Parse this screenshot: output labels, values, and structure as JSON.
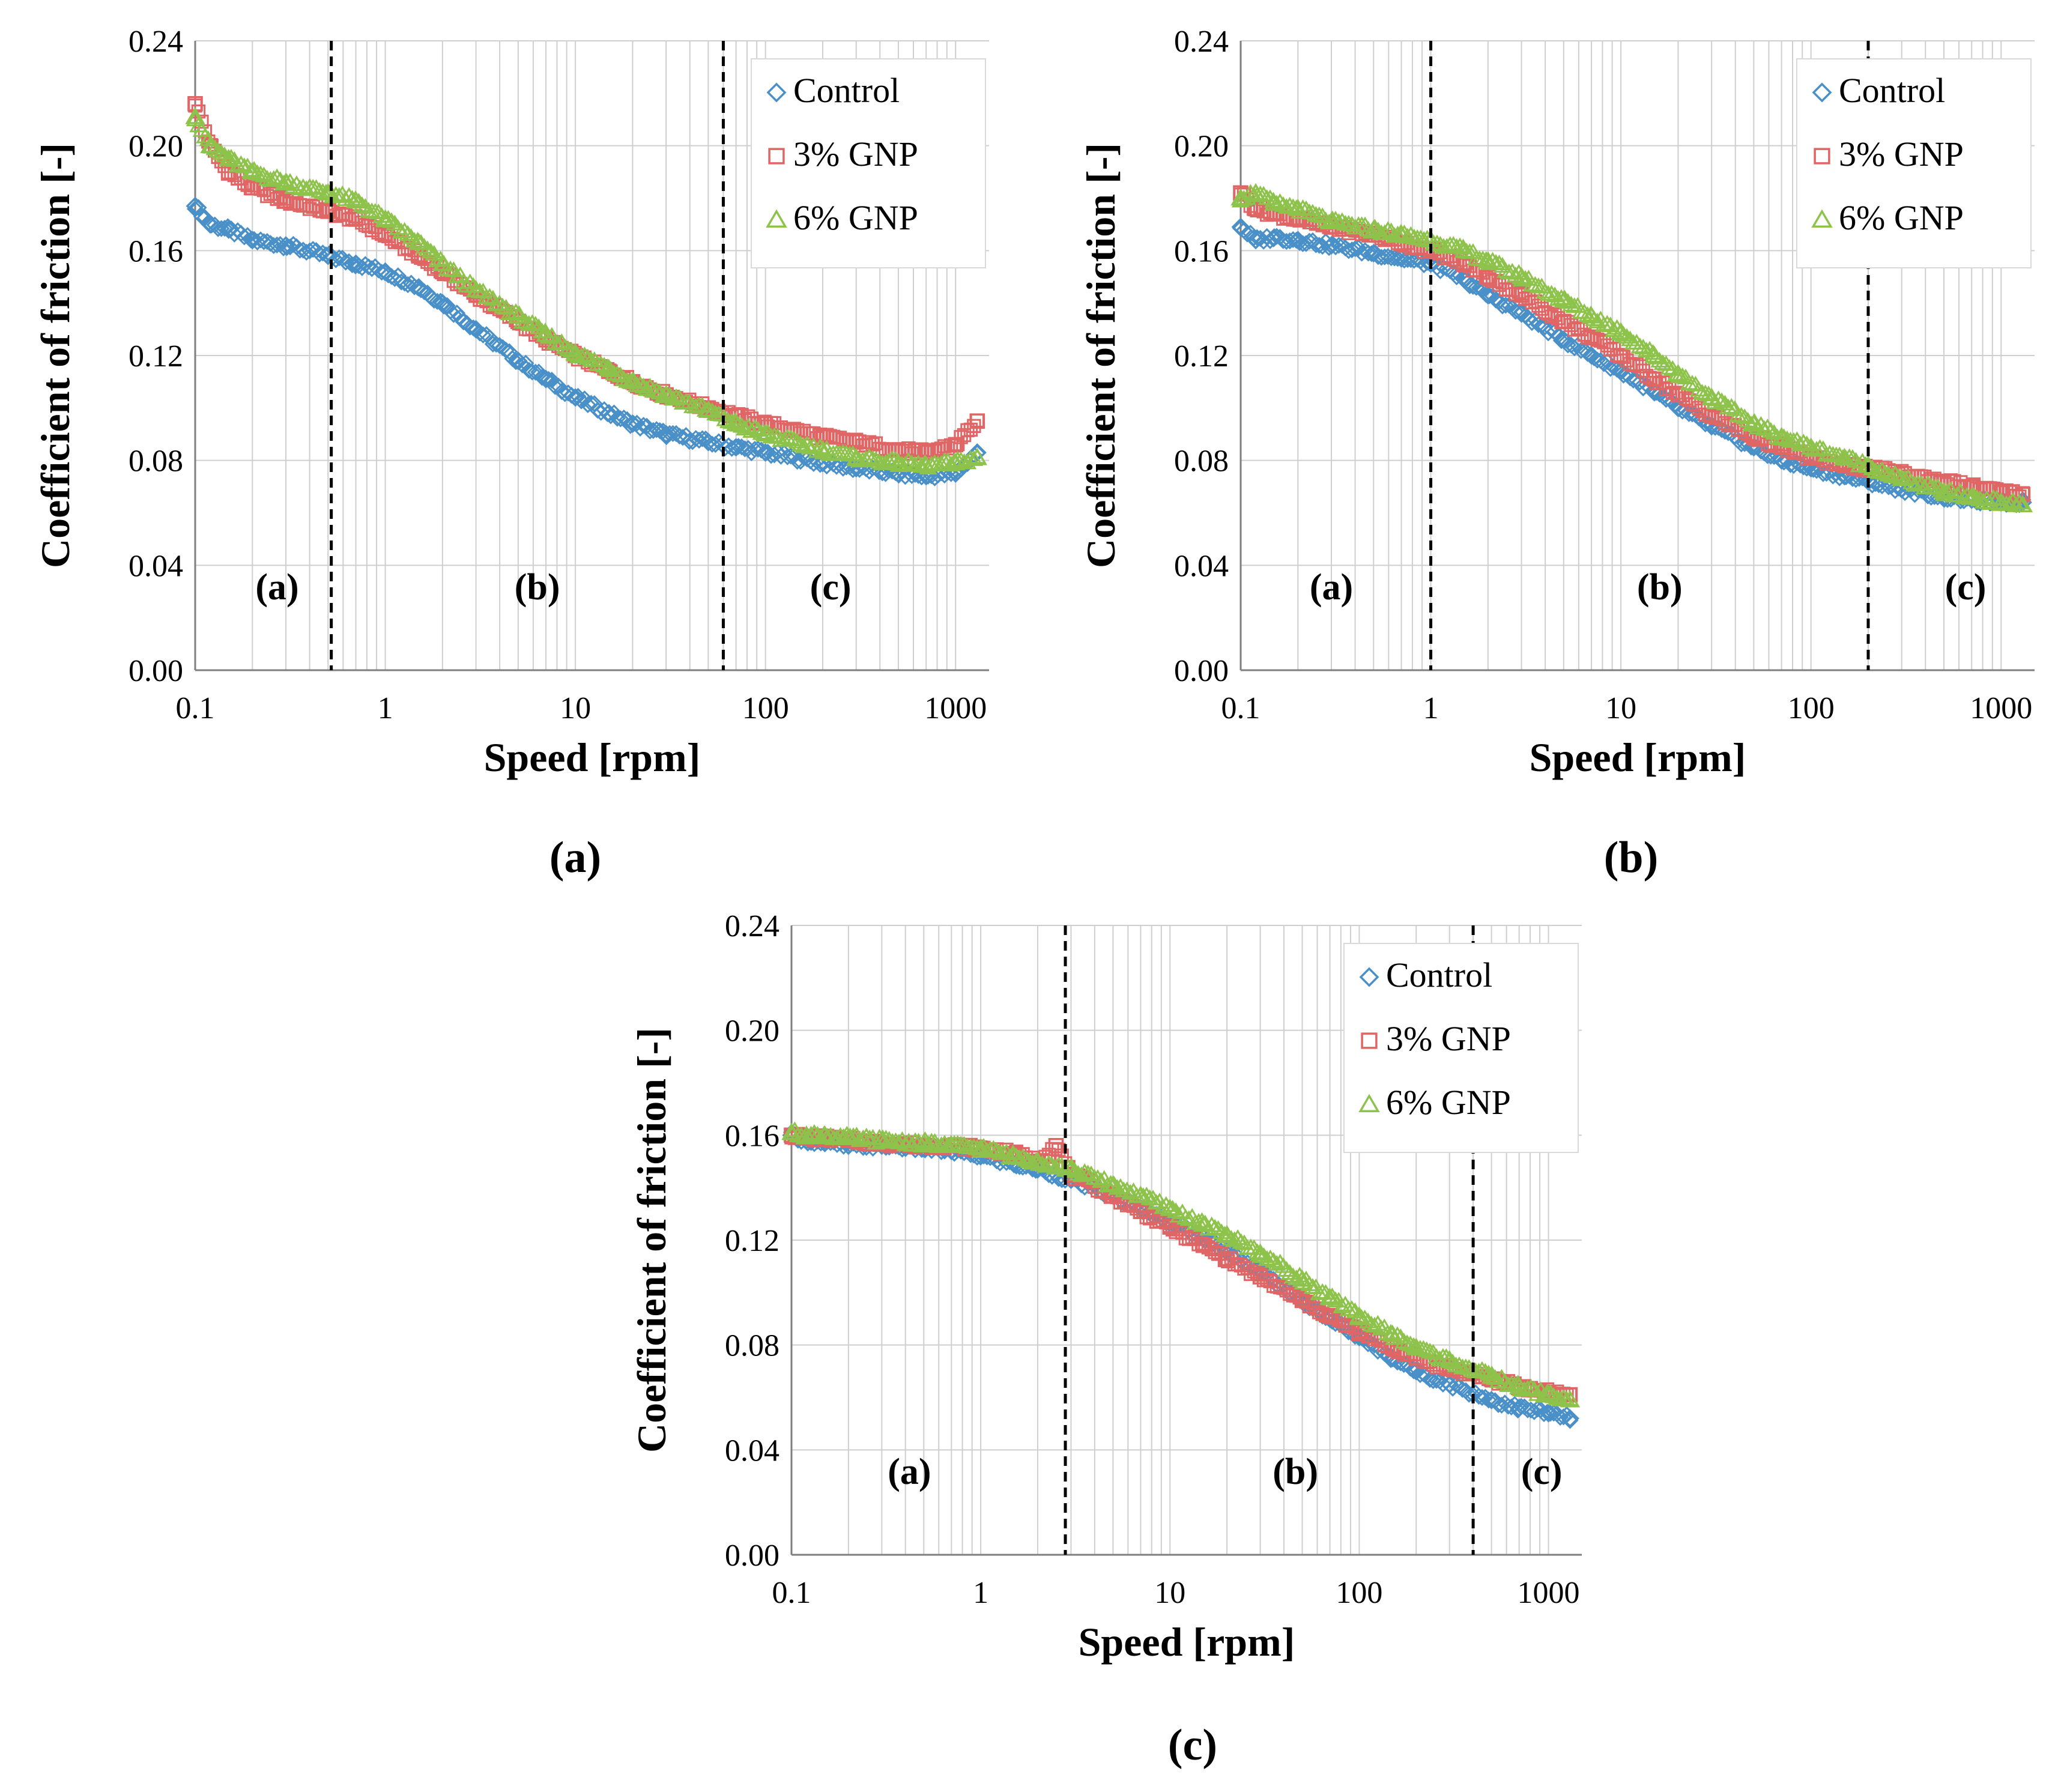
{
  "panel_labels": [
    "(a)",
    "(b)",
    "(c)"
  ],
  "chart_data": [
    {
      "type": "scatter",
      "panel": "(a)",
      "xlabel": "Speed [rpm]",
      "ylabel": "Coefficient of friction [-]",
      "xscale": "log",
      "xlim": [
        0.1,
        1500
      ],
      "ylim": [
        0,
        0.24
      ],
      "xticks": [
        0.1,
        1,
        10,
        100,
        1000
      ],
      "xtick_labels": [
        "0.1",
        "1",
        "10",
        "100",
        "1000"
      ],
      "yticks": [
        0,
        0.04,
        0.08,
        0.12,
        0.16,
        0.2,
        0.24
      ],
      "ytick_labels": [
        "0.00",
        "0.04",
        "0.08",
        "0.12",
        "0.16",
        "0.20",
        "0.24"
      ],
      "grid": true,
      "legend_position": "top-right",
      "regime_boundaries": [
        0.52,
        60
      ],
      "regime_labels": [
        {
          "text": "(a)",
          "x": 0.27,
          "y": 0.027
        },
        {
          "text": "(b)",
          "x": 6.3,
          "y": 0.027
        },
        {
          "text": "(c)",
          "x": 220,
          "y": 0.027
        }
      ],
      "series": [
        {
          "name": "Control",
          "marker": "diamond",
          "color": "#4a90c8",
          "x": [
            0.1,
            0.12,
            0.15,
            0.2,
            0.3,
            0.5,
            0.7,
            1,
            1.5,
            2,
            3,
            5,
            7,
            10,
            15,
            20,
            30,
            50,
            70,
            100,
            200,
            300,
            500,
            700,
            1000,
            1300
          ],
          "y": [
            0.177,
            0.17,
            0.168,
            0.164,
            0.162,
            0.158,
            0.155,
            0.152,
            0.146,
            0.14,
            0.13,
            0.118,
            0.111,
            0.104,
            0.098,
            0.094,
            0.09,
            0.087,
            0.085,
            0.083,
            0.079,
            0.077,
            0.075,
            0.074,
            0.075,
            0.083
          ]
        },
        {
          "name": "3% GNP",
          "marker": "square",
          "color": "#e06666",
          "x": [
            0.1,
            0.12,
            0.15,
            0.2,
            0.3,
            0.5,
            0.7,
            1,
            1.5,
            2,
            3,
            5,
            7,
            10,
            15,
            20,
            30,
            50,
            70,
            100,
            200,
            300,
            500,
            700,
            1000,
            1300
          ],
          "y": [
            0.216,
            0.2,
            0.19,
            0.184,
            0.179,
            0.175,
            0.172,
            0.166,
            0.158,
            0.152,
            0.143,
            0.133,
            0.126,
            0.12,
            0.114,
            0.11,
            0.105,
            0.1,
            0.097,
            0.094,
            0.089,
            0.087,
            0.084,
            0.083,
            0.086,
            0.095
          ]
        },
        {
          "name": "6% GNP",
          "marker": "triangle",
          "color": "#8dc34a",
          "x": [
            0.1,
            0.12,
            0.15,
            0.2,
            0.3,
            0.5,
            0.7,
            1,
            1.5,
            2,
            3,
            5,
            7,
            10,
            15,
            20,
            30,
            50,
            70,
            100,
            200,
            300,
            500,
            700,
            1000,
            1300
          ],
          "y": [
            0.211,
            0.2,
            0.195,
            0.19,
            0.186,
            0.182,
            0.179,
            0.172,
            0.163,
            0.155,
            0.145,
            0.135,
            0.128,
            0.121,
            0.115,
            0.11,
            0.105,
            0.099,
            0.094,
            0.09,
            0.084,
            0.081,
            0.079,
            0.078,
            0.079,
            0.081
          ]
        }
      ]
    },
    {
      "type": "scatter",
      "panel": "(b)",
      "xlabel": "Speed [rpm]",
      "ylabel": "Coefficient of friction [-]",
      "xscale": "log",
      "xlim": [
        0.1,
        1500
      ],
      "ylim": [
        0,
        0.24
      ],
      "xticks": [
        0.1,
        1,
        10,
        100,
        1000
      ],
      "xtick_labels": [
        "0.1",
        "1",
        "10",
        "100",
        "1000"
      ],
      "yticks": [
        0,
        0.04,
        0.08,
        0.12,
        0.16,
        0.2,
        0.24
      ],
      "ytick_labels": [
        "0.00",
        "0.04",
        "0.08",
        "0.12",
        "0.16",
        "0.20",
        "0.24"
      ],
      "grid": true,
      "legend_position": "top-right",
      "regime_boundaries": [
        1,
        200
      ],
      "regime_labels": [
        {
          "text": "(a)",
          "x": 0.3,
          "y": 0.027
        },
        {
          "text": "(b)",
          "x": 16,
          "y": 0.027
        },
        {
          "text": "(c)",
          "x": 650,
          "y": 0.027
        }
      ],
      "series": [
        {
          "name": "Control",
          "marker": "diamond",
          "color": "#4a90c8",
          "x": [
            0.1,
            0.12,
            0.15,
            0.2,
            0.3,
            0.5,
            0.7,
            1,
            1.5,
            2,
            3,
            5,
            7,
            10,
            15,
            20,
            30,
            50,
            70,
            100,
            150,
            200,
            300,
            500,
            700,
            1000,
            1300
          ],
          "y": [
            0.169,
            0.164,
            0.165,
            0.164,
            0.162,
            0.159,
            0.157,
            0.155,
            0.149,
            0.143,
            0.136,
            0.126,
            0.12,
            0.114,
            0.106,
            0.1,
            0.093,
            0.085,
            0.08,
            0.077,
            0.074,
            0.072,
            0.069,
            0.066,
            0.065,
            0.064,
            0.064
          ]
        },
        {
          "name": "3% GNP",
          "marker": "square",
          "color": "#e06666",
          "x": [
            0.1,
            0.12,
            0.15,
            0.2,
            0.3,
            0.5,
            0.7,
            1,
            1.5,
            2,
            3,
            5,
            7,
            10,
            15,
            20,
            30,
            50,
            70,
            100,
            150,
            200,
            300,
            500,
            700,
            1000,
            1300
          ],
          "y": [
            0.182,
            0.176,
            0.174,
            0.172,
            0.169,
            0.166,
            0.163,
            0.16,
            0.155,
            0.15,
            0.143,
            0.133,
            0.127,
            0.12,
            0.111,
            0.105,
            0.097,
            0.089,
            0.085,
            0.081,
            0.078,
            0.077,
            0.075,
            0.072,
            0.07,
            0.068,
            0.067
          ]
        },
        {
          "name": "6% GNP",
          "marker": "triangle",
          "color": "#8dc34a",
          "x": [
            0.1,
            0.12,
            0.15,
            0.2,
            0.3,
            0.5,
            0.7,
            1,
            1.5,
            2,
            3,
            5,
            7,
            10,
            15,
            20,
            30,
            50,
            70,
            100,
            150,
            200,
            300,
            500,
            700,
            1000,
            1300
          ],
          "y": [
            0.18,
            0.182,
            0.178,
            0.176,
            0.171,
            0.168,
            0.166,
            0.164,
            0.16,
            0.156,
            0.15,
            0.141,
            0.135,
            0.129,
            0.12,
            0.113,
            0.104,
            0.094,
            0.089,
            0.085,
            0.081,
            0.078,
            0.073,
            0.068,
            0.066,
            0.064,
            0.063
          ]
        }
      ]
    },
    {
      "type": "scatter",
      "panel": "(c)",
      "xlabel": "Speed [rpm]",
      "ylabel": "Coefficient of friction [-]",
      "xscale": "log",
      "xlim": [
        0.1,
        1500
      ],
      "ylim": [
        0,
        0.24
      ],
      "xticks": [
        0.1,
        1,
        10,
        100,
        1000
      ],
      "xtick_labels": [
        "0.1",
        "1",
        "10",
        "100",
        "1000"
      ],
      "yticks": [
        0,
        0.04,
        0.08,
        0.12,
        0.16,
        0.2,
        0.24
      ],
      "ytick_labels": [
        "0.00",
        "0.04",
        "0.08",
        "0.12",
        "0.16",
        "0.20",
        "0.24"
      ],
      "grid": true,
      "legend_position": "top-right",
      "regime_boundaries": [
        2.8,
        400
      ],
      "regime_labels": [
        {
          "text": "(a)",
          "x": 0.42,
          "y": 0.027
        },
        {
          "text": "(b)",
          "x": 46,
          "y": 0.027
        },
        {
          "text": "(c)",
          "x": 920,
          "y": 0.027
        }
      ],
      "series": [
        {
          "name": "Control",
          "marker": "diamond",
          "color": "#4a90c8",
          "x": [
            0.1,
            0.12,
            0.15,
            0.2,
            0.3,
            0.5,
            0.7,
            1,
            1.5,
            2,
            3,
            5,
            7,
            10,
            15,
            20,
            30,
            50,
            70,
            100,
            150,
            200,
            300,
            500,
            700,
            1000,
            1300
          ],
          "y": [
            0.16,
            0.158,
            0.157,
            0.156,
            0.156,
            0.155,
            0.154,
            0.152,
            0.149,
            0.147,
            0.143,
            0.137,
            0.132,
            0.127,
            0.121,
            0.116,
            0.108,
            0.097,
            0.09,
            0.083,
            0.075,
            0.07,
            0.065,
            0.059,
            0.056,
            0.054,
            0.052
          ]
        },
        {
          "name": "3% GNP",
          "marker": "square",
          "color": "#e06666",
          "x": [
            0.1,
            0.12,
            0.15,
            0.2,
            0.3,
            0.5,
            0.7,
            1,
            1.5,
            2,
            2.5,
            3,
            5,
            7,
            10,
            15,
            20,
            30,
            50,
            70,
            100,
            150,
            200,
            300,
            500,
            700,
            1000,
            1300
          ],
          "y": [
            0.16,
            0.159,
            0.159,
            0.158,
            0.157,
            0.156,
            0.156,
            0.155,
            0.153,
            0.15,
            0.156,
            0.145,
            0.137,
            0.131,
            0.125,
            0.118,
            0.113,
            0.106,
            0.097,
            0.091,
            0.085,
            0.079,
            0.075,
            0.071,
            0.067,
            0.064,
            0.062,
            0.061
          ]
        },
        {
          "name": "6% GNP",
          "marker": "triangle",
          "color": "#8dc34a",
          "x": [
            0.1,
            0.12,
            0.15,
            0.2,
            0.3,
            0.5,
            0.7,
            1,
            1.5,
            2,
            3,
            5,
            7,
            10,
            15,
            20,
            30,
            50,
            70,
            100,
            150,
            200,
            300,
            500,
            700,
            1000,
            1300
          ],
          "y": [
            0.161,
            0.16,
            0.16,
            0.159,
            0.158,
            0.157,
            0.156,
            0.155,
            0.152,
            0.15,
            0.147,
            0.141,
            0.137,
            0.132,
            0.126,
            0.122,
            0.115,
            0.105,
            0.098,
            0.091,
            0.084,
            0.079,
            0.074,
            0.068,
            0.064,
            0.061,
            0.059
          ]
        }
      ]
    }
  ]
}
